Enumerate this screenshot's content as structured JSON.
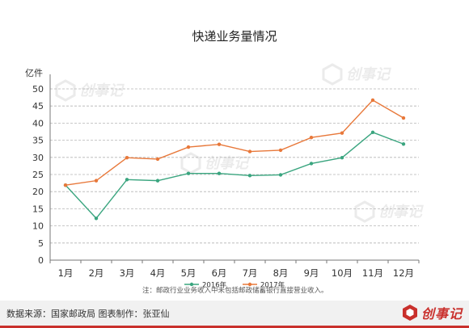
{
  "chart_data": {
    "type": "line",
    "title": "快递业务量情况",
    "ylabel": "亿件",
    "xlabel": "",
    "categories": [
      "1月",
      "2月",
      "3月",
      "4月",
      "5月",
      "6月",
      "7月",
      "8月",
      "9月",
      "10月",
      "11月",
      "12月"
    ],
    "ylim": [
      0,
      50
    ],
    "yticks": [
      0,
      5,
      10,
      15,
      20,
      25,
      30,
      35,
      40,
      45,
      50
    ],
    "grid": true,
    "legend_position": "bottom",
    "series": [
      {
        "name": "2016年",
        "color": "#3aa57f",
        "values": [
          21.9,
          12.2,
          23.5,
          23.2,
          25.3,
          25.3,
          24.7,
          24.9,
          28.2,
          29.9,
          37.3,
          33.9
        ]
      },
      {
        "name": "2017年",
        "color": "#e8783a",
        "values": [
          21.9,
          23.2,
          29.9,
          29.5,
          33.0,
          33.8,
          31.7,
          32.1,
          35.8,
          37.1,
          46.7,
          41.5
        ]
      }
    ],
    "note": "注：邮政行业业务收入中未包括邮政储蓄银行直接营业收入。"
  },
  "footer": {
    "source": "数据来源：国家邮政局  图表制作：张亚仙"
  },
  "brand": {
    "watermark": "创事记",
    "logo_text": "创事记",
    "logo_color": "#c9302c"
  }
}
